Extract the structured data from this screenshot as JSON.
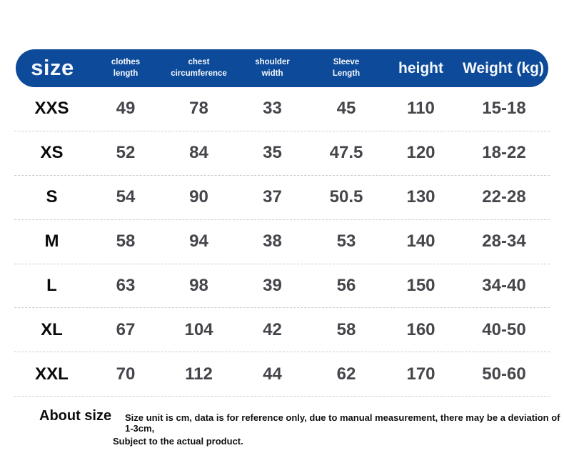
{
  "colors": {
    "header_bg": "#0d4a99",
    "header_text": "#f4f8fc",
    "size_label_text": "#0a0a0a",
    "value_text": "#45454b",
    "divider": "#cccccc"
  },
  "header": {
    "size": "size",
    "clothes_length": "clothes\nlength",
    "chest_circumference": "chest\ncircumference",
    "shoulder_width": "shoulder\nwidth",
    "sleeve_length": "Sleeve\nLength",
    "height": "height",
    "weight": "Weight (kg)"
  },
  "chart_data": {
    "type": "table",
    "title": "size chart",
    "columns": [
      "size",
      "clothes length",
      "chest circumference",
      "shoulder width",
      "Sleeve Length",
      "height",
      "Weight (kg)"
    ],
    "rows": [
      [
        "XXS",
        "49",
        "78",
        "33",
        "45",
        "110",
        "15-18"
      ],
      [
        "XS",
        "52",
        "84",
        "35",
        "47.5",
        "120",
        "18-22"
      ],
      [
        "S",
        "54",
        "90",
        "37",
        "50.5",
        "130",
        "22-28"
      ],
      [
        "M",
        "58",
        "94",
        "38",
        "53",
        "140",
        "28-34"
      ],
      [
        "L",
        "63",
        "98",
        "39",
        "56",
        "150",
        "34-40"
      ],
      [
        "XL",
        "67",
        "104",
        "42",
        "58",
        "160",
        "40-50"
      ],
      [
        "XXL",
        "70",
        "112",
        "44",
        "62",
        "170",
        "50-60"
      ]
    ],
    "unit": "cm"
  },
  "footer": {
    "title": "About size",
    "note_line1": "Size unit is cm, data is for reference only, due to manual measurement, there may be a deviation of 1-3cm,",
    "note_line2": "Subject to the actual product."
  }
}
